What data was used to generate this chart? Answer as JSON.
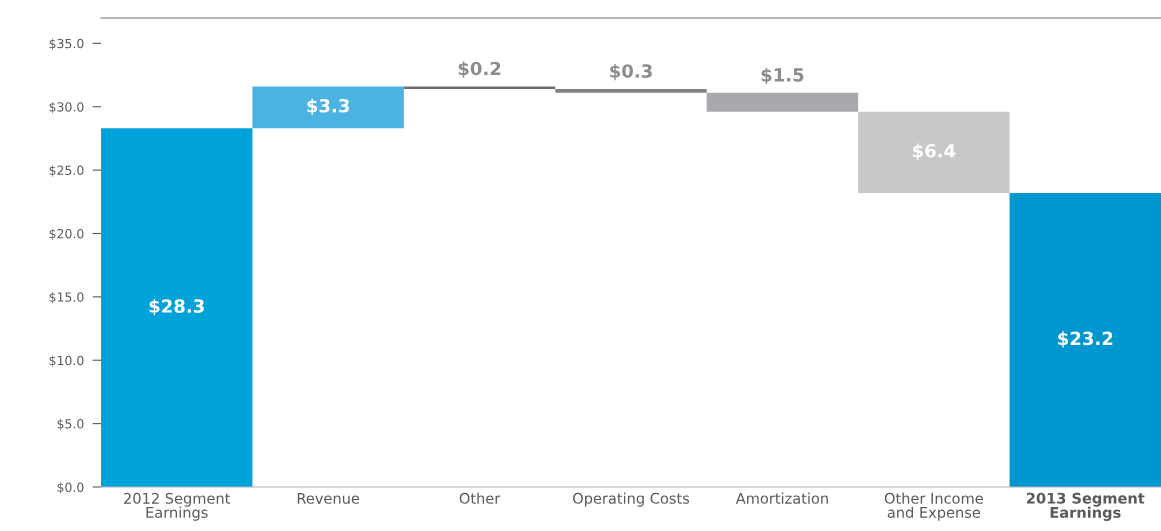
{
  "chart_data": {
    "type": "bar",
    "categories": [
      "2012 Segment\nEarnings",
      "Revenue",
      "Other",
      "Operating Costs",
      "Amortization",
      "Other Income\nand Expense",
      "2013 Segment\nEarnings"
    ],
    "values": [
      28.3,
      3.3,
      0.2,
      0.3,
      1.5,
      6.4,
      23.2
    ],
    "base": [
      0,
      28.3,
      31.4,
      31.1,
      29.6,
      23.2,
      0
    ],
    "colors": [
      "#00a3d9",
      "#4ab3e2",
      "#6d6e71",
      "#808285",
      "#a7a9ac",
      "#c7c8ca",
      "#0096d0"
    ],
    "value_labels": [
      "$28.3",
      "$3.3",
      "$0.2",
      "$0.3",
      "$1.5",
      "$6.4",
      "$23.2"
    ],
    "ylim": [
      0,
      37
    ],
    "yticks": [
      {
        "value": 0,
        "label": "$0.0"
      },
      {
        "value": 5,
        "label": "$5.0"
      },
      {
        "value": 10,
        "label": "$10.0"
      },
      {
        "value": 15,
        "label": "$15.0"
      },
      {
        "value": 20,
        "label": "$20.0"
      },
      {
        "value": 25,
        "label": "$25.0"
      },
      {
        "value": 30,
        "label": "$30.0"
      },
      {
        "value": 35,
        "label": "$35.0"
      }
    ],
    "grid": false
  }
}
